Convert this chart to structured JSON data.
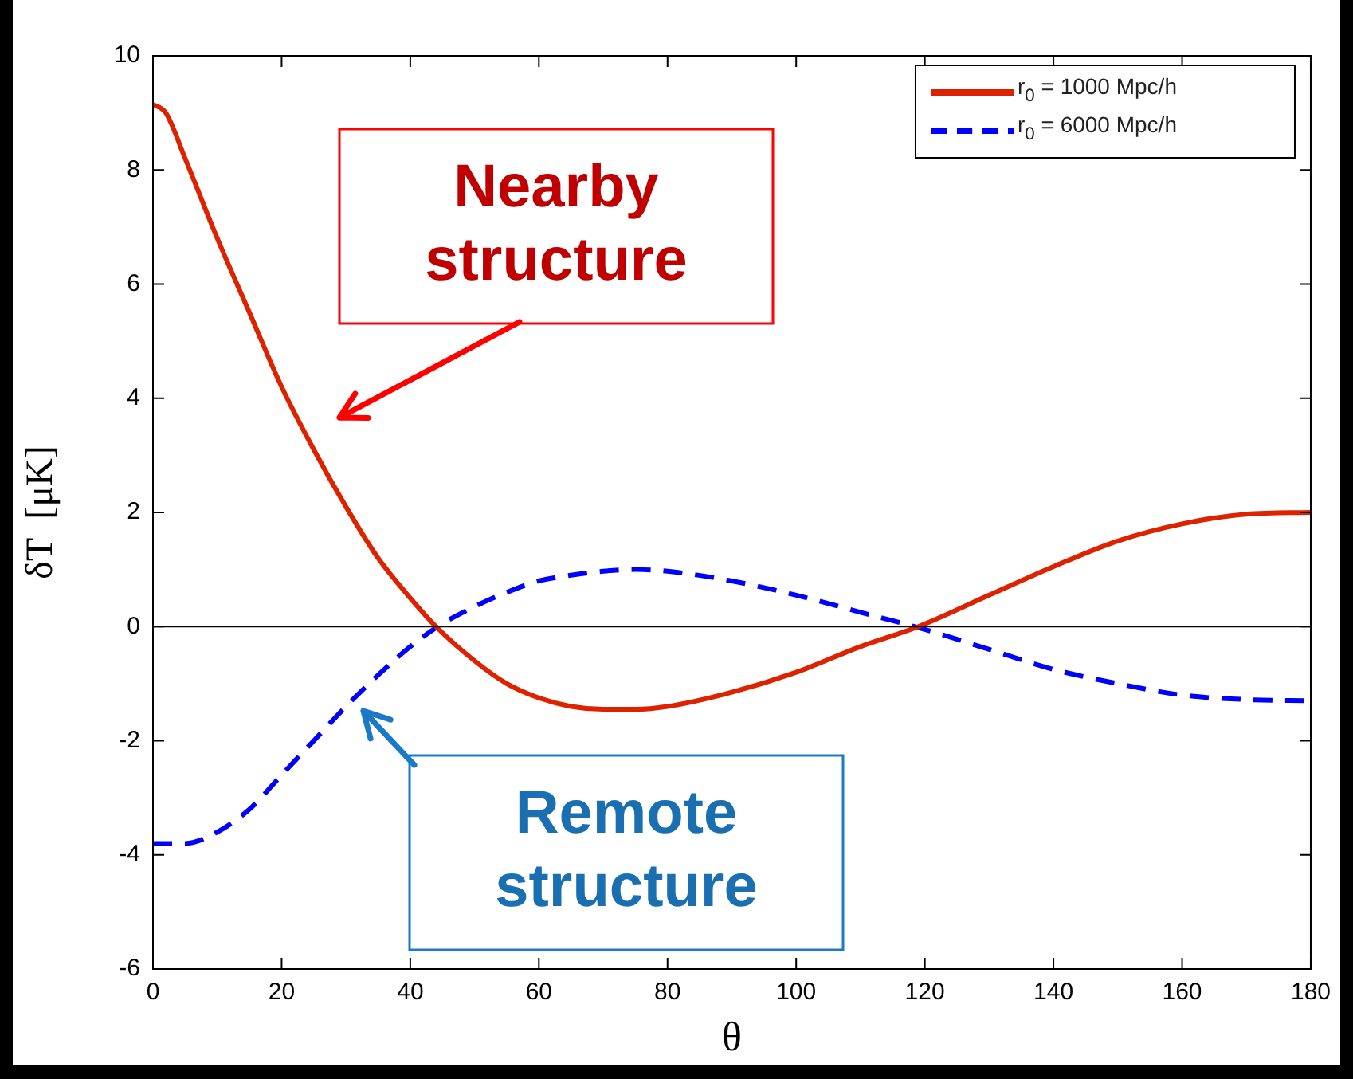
{
  "chart_data": {
    "type": "line",
    "xlabel": "θ",
    "ylabel": "δT  [μK]",
    "x": [
      0,
      2,
      5,
      10,
      15,
      20,
      25,
      30,
      35,
      40,
      44,
      50,
      55,
      60,
      65,
      70,
      75,
      80,
      90,
      100,
      110,
      119,
      130,
      140,
      150,
      160,
      170,
      180
    ],
    "series": [
      {
        "name": "r$_{0}$ = 1000 Mpc/h",
        "color": "#dd2200",
        "line_style": "solid",
        "values": [
          9.15,
          9.0,
          8.2,
          6.8,
          5.5,
          4.2,
          3.1,
          2.1,
          1.2,
          0.5,
          0,
          -0.6,
          -1.0,
          -1.25,
          -1.4,
          -1.45,
          -1.45,
          -1.4,
          -1.15,
          -0.8,
          -0.35,
          0,
          0.55,
          1.05,
          1.5,
          1.8,
          1.97,
          2.0
        ]
      },
      {
        "name": "r$_{0}$ = 6000 Mpc/h",
        "color": "#0000ff",
        "line_style": "dashed",
        "x": [
          0,
          5,
          10,
          15,
          20,
          25,
          30,
          35,
          40,
          45,
          50,
          55,
          60,
          65,
          70,
          75,
          80,
          90,
          100,
          110,
          120,
          130,
          140,
          150,
          160,
          170,
          180
        ],
        "values": [
          -3.8,
          -3.8,
          -3.6,
          -3.2,
          -2.6,
          -2.0,
          -1.4,
          -0.85,
          -0.35,
          0.05,
          0.35,
          0.6,
          0.8,
          0.9,
          0.97,
          1.0,
          0.97,
          0.8,
          0.55,
          0.25,
          -0.05,
          -0.4,
          -0.75,
          -1.0,
          -1.2,
          -1.28,
          -1.3
        ]
      }
    ],
    "xlim": [
      0,
      180
    ],
    "xticks": [
      0,
      20,
      40,
      60,
      80,
      100,
      120,
      140,
      160,
      180
    ],
    "ylim": [
      -6,
      10
    ],
    "yticks": [
      -6,
      -4,
      -2,
      0,
      2,
      4,
      6,
      8,
      10
    ],
    "ref_lines": [
      {
        "axis": "y",
        "value": 0,
        "color": "#000000"
      }
    ],
    "annotations": [
      "Nearby structure",
      "Remote structure"
    ],
    "legend": "top right",
    "grid": false,
    "marker": "none"
  }
}
